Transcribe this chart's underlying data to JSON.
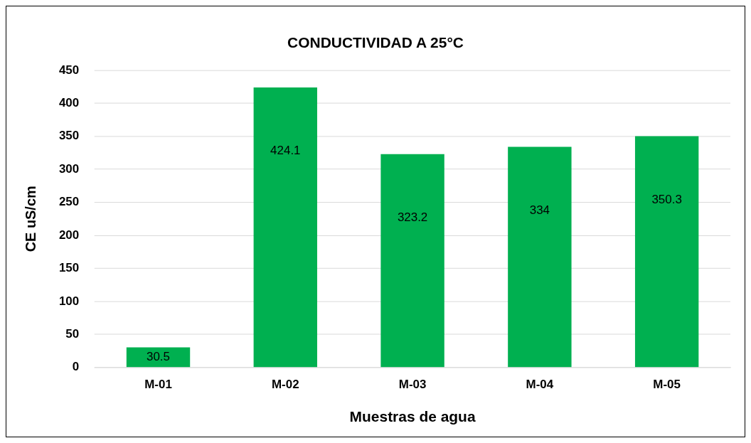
{
  "chart_data": {
    "type": "bar",
    "title": "CONDUCTIVIDAD A 25°C",
    "xlabel": "Muestras de agua",
    "ylabel": "CE uS/cm",
    "categories": [
      "M-01",
      "M-02",
      "M-03",
      "M-04",
      "M-05"
    ],
    "values": [
      30.5,
      424.1,
      323.2,
      334,
      350.3
    ],
    "color": "#00b050",
    "ylim": [
      0,
      450
    ],
    "yticks": [
      0,
      50,
      100,
      150,
      200,
      250,
      300,
      350,
      400,
      450
    ],
    "grid": "y",
    "data_labels": true,
    "legend": false
  }
}
